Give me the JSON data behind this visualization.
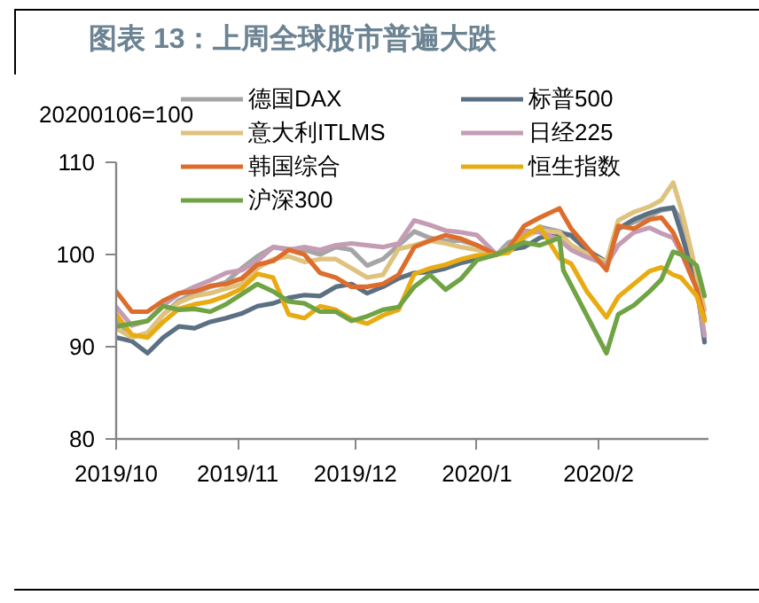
{
  "chart_data": {
    "type": "line",
    "title": "图表 13：上周全球股市普遍大跌",
    "ylabel": "20200106=100",
    "x": [
      "2019-10-01",
      "2019-10-05",
      "2019-10-09",
      "2019-10-13",
      "2019-10-17",
      "2019-10-21",
      "2019-10-25",
      "2019-10-29",
      "2019-11-02",
      "2019-11-06",
      "2019-11-10",
      "2019-11-14",
      "2019-11-18",
      "2019-11-22",
      "2019-11-26",
      "2019-11-30",
      "2019-12-04",
      "2019-12-08",
      "2019-12-12",
      "2019-12-16",
      "2019-12-20",
      "2019-12-24",
      "2019-12-28",
      "2020-01-01",
      "2020-01-06",
      "2020-01-09",
      "2020-01-13",
      "2020-01-17",
      "2020-01-22",
      "2020-01-25",
      "2020-01-29",
      "2020-02-03",
      "2020-02-06",
      "2020-02-10",
      "2020-02-14",
      "2020-02-17",
      "2020-02-20",
      "2020-02-22",
      "2020-02-24",
      "2020-02-26",
      "2020-02-28"
    ],
    "series": [
      {
        "name": "德国DAX",
        "color": "#a5a5a5",
        "values": [
          93.0,
          91.0,
          91.5,
          93.5,
          95.0,
          95.8,
          96.5,
          97.0,
          98.5,
          99.8,
          100.8,
          100.6,
          100.5,
          100.0,
          100.8,
          100.5,
          98.8,
          99.5,
          101.0,
          102.5,
          101.8,
          101.5,
          101.5,
          101.0,
          100.0,
          101.3,
          101.8,
          103.0,
          102.5,
          102.0,
          100.5,
          99.0,
          102.8,
          103.5,
          104.2,
          104.8,
          105.0,
          103.8,
          99.5,
          97.5,
          91.0
        ]
      },
      {
        "name": "标普500",
        "color": "#5b7083",
        "values": [
          91.0,
          90.6,
          89.3,
          91.0,
          92.2,
          92.0,
          92.7,
          93.1,
          93.6,
          94.4,
          94.7,
          95.3,
          95.6,
          95.5,
          96.5,
          96.8,
          95.8,
          96.5,
          97.4,
          98.0,
          98.1,
          98.5,
          99.1,
          99.5,
          100.0,
          100.5,
          100.8,
          101.8,
          102.3,
          102.1,
          100.5,
          99.2,
          102.8,
          103.8,
          104.5,
          104.9,
          105.1,
          102.4,
          99.5,
          96.7,
          90.5
        ]
      },
      {
        "name": "意大利ITLMS",
        "color": "#dfc27d",
        "values": [
          92.0,
          91.0,
          91.5,
          93.5,
          94.8,
          95.5,
          95.8,
          96.3,
          96.8,
          98.5,
          99.5,
          99.8,
          99.2,
          99.5,
          99.5,
          98.5,
          97.5,
          97.8,
          100.6,
          101.0,
          101.5,
          101.2,
          100.8,
          100.5,
          100.0,
          100.8,
          101.9,
          102.6,
          102.4,
          101.0,
          100.1,
          99.2,
          103.7,
          104.6,
          105.2,
          105.9,
          107.8,
          105.0,
          101.5,
          97.8,
          94.0
        ]
      },
      {
        "name": "日经225",
        "color": "#c49cb4",
        "values": [
          94.3,
          92.3,
          92.8,
          94.5,
          95.7,
          96.5,
          97.2,
          98.0,
          98.3,
          99.3,
          100.8,
          100.5,
          100.8,
          100.5,
          101.0,
          101.2,
          101.0,
          100.8,
          101.2,
          103.7,
          103.2,
          102.6,
          102.4,
          102.1,
          100.0,
          100.8,
          102.6,
          102.4,
          101.6,
          100.5,
          99.7,
          98.9,
          101.0,
          102.4,
          102.9,
          102.3,
          101.8,
          100.2,
          98.3,
          96.3,
          91.2
        ]
      },
      {
        "name": "韩国综合",
        "color": "#dc6d2c",
        "values": [
          96.0,
          93.8,
          93.8,
          95.0,
          95.8,
          96.0,
          96.6,
          96.8,
          97.4,
          98.9,
          99.3,
          100.5,
          100.0,
          98.0,
          97.5,
          96.5,
          96.5,
          96.8,
          97.8,
          100.8,
          101.5,
          102.1,
          101.7,
          101.0,
          100.0,
          100.6,
          103.1,
          104.0,
          105.0,
          102.8,
          100.8,
          98.3,
          103.1,
          102.8,
          103.8,
          104.0,
          102.4,
          100.5,
          98.3,
          96.3,
          93.0
        ]
      },
      {
        "name": "恒生指数",
        "color": "#e8ab12",
        "values": [
          93.5,
          91.3,
          91.0,
          92.7,
          94.1,
          94.6,
          94.9,
          95.5,
          96.3,
          97.9,
          97.5,
          93.5,
          93.1,
          94.4,
          94.0,
          93.0,
          92.5,
          93.4,
          94.0,
          97.9,
          98.5,
          98.9,
          99.5,
          99.9,
          100.0,
          100.2,
          102.0,
          103.0,
          99.6,
          99.0,
          96.0,
          93.2,
          95.4,
          96.8,
          98.2,
          98.6,
          97.8,
          97.5,
          96.5,
          95.5,
          92.8
        ]
      },
      {
        "name": "沪深300",
        "color": "#6fa343",
        "x": [
          "2019-10-01",
          "2019-10-09",
          "2019-10-13",
          "2019-10-17",
          "2019-10-21",
          "2019-10-25",
          "2019-10-29",
          "2019-11-02",
          "2019-11-06",
          "2019-11-10",
          "2019-11-14",
          "2019-11-18",
          "2019-11-22",
          "2019-11-26",
          "2019-11-30",
          "2019-12-04",
          "2019-12-08",
          "2019-12-12",
          "2019-12-16",
          "2019-12-20",
          "2019-12-24",
          "2019-12-28",
          "2020-01-01",
          "2020-01-06",
          "2020-01-09",
          "2020-01-13",
          "2020-01-17",
          "2020-01-22",
          "2020-01-23",
          "2020-02-03",
          "2020-02-06",
          "2020-02-10",
          "2020-02-14",
          "2020-02-17",
          "2020-02-20",
          "2020-02-22",
          "2020-02-24",
          "2020-02-26",
          "2020-02-28"
        ],
        "values": [
          92.2,
          92.8,
          94.4,
          94.0,
          94.1,
          93.8,
          94.6,
          95.7,
          96.8,
          96.0,
          94.9,
          94.7,
          93.8,
          93.8,
          92.8,
          93.3,
          94.0,
          94.3,
          96.5,
          97.8,
          96.2,
          97.4,
          99.4,
          100.0,
          100.6,
          101.3,
          101.0,
          101.8,
          98.3,
          89.3,
          93.5,
          94.5,
          96.0,
          97.3,
          100.3,
          100.0,
          99.5,
          98.8,
          95.5
        ]
      }
    ],
    "xlim": [
      "2019-10-01",
      "2020-02-29"
    ],
    "xticks": [
      {
        "value": "2019-10-01",
        "label": "2019/10"
      },
      {
        "value": "2019-11-01",
        "label": "2019/11"
      },
      {
        "value": "2019-12-01",
        "label": "2019/12"
      },
      {
        "value": "2020-01-01",
        "label": "2020/1"
      },
      {
        "value": "2020-02-01",
        "label": "2020/2"
      }
    ],
    "ylim": [
      80,
      110
    ],
    "yticks": [
      80,
      90,
      100,
      110
    ],
    "legend": "top"
  }
}
